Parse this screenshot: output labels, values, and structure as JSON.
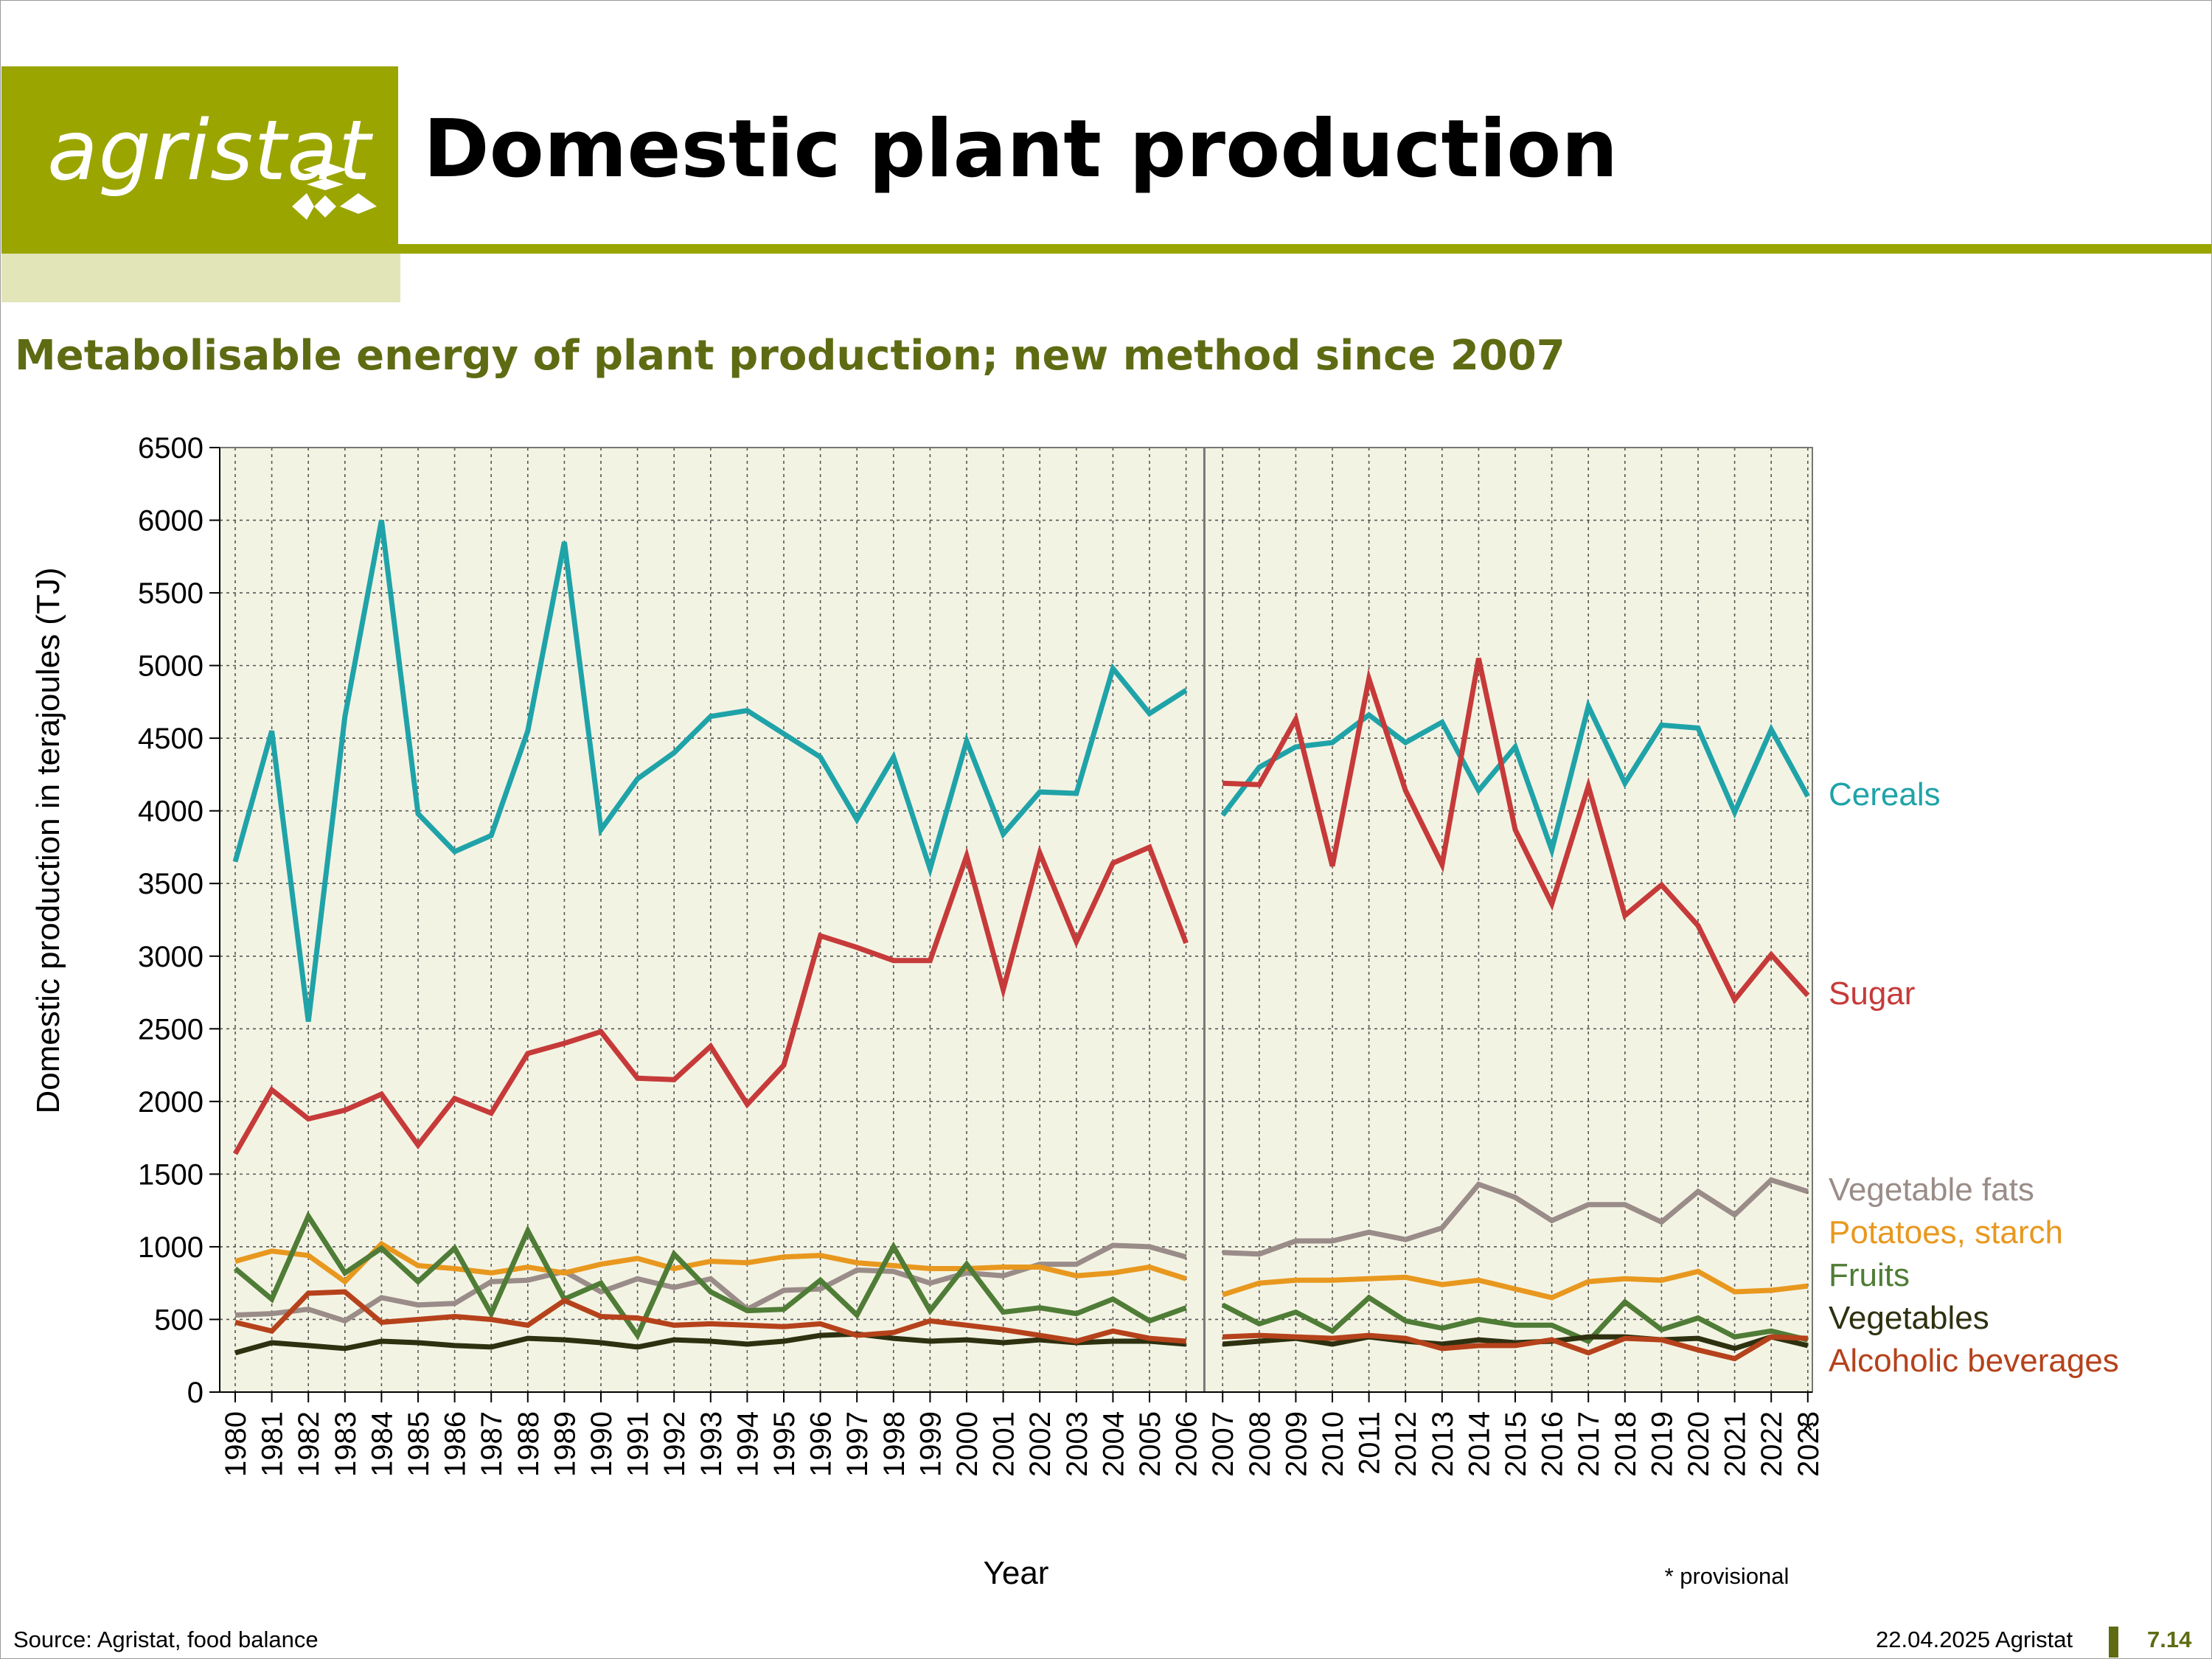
{
  "logo": {
    "text": "agristat"
  },
  "title": "Domestic plant production",
  "subtitle": "Metabolisable energy of plant production; new method since 2007",
  "footer": {
    "source": "Source: Agristat, food balance",
    "date": "22.04.2025 Agristat",
    "page": "7.14"
  },
  "colors": {
    "brand": "#9ba500",
    "brand_dark": "#5f6b13",
    "plot_bg": "#f3f3e3"
  },
  "chart_data": {
    "type": "line",
    "xlabel": "Year",
    "ylabel": "Domestic production in terajoules (TJ)",
    "ylim": [
      0,
      6500
    ],
    "yticks": [
      "0",
      "500",
      "1000",
      "1500",
      "2000",
      "2500",
      "3000",
      "3500",
      "4000",
      "4500",
      "5000",
      "5500",
      "6000",
      "6500"
    ],
    "grid": true,
    "break_note": "new method since 2007",
    "provisional_note": "* provisional",
    "provisional_marker": "*",
    "x": [
      "1980",
      "1981",
      "1982",
      "1983",
      "1984",
      "1985",
      "1986",
      "1987",
      "1988",
      "1989",
      "1990",
      "1991",
      "1992",
      "1993",
      "1994",
      "1995",
      "1996",
      "1997",
      "1998",
      "1999",
      "2000",
      "2001",
      "2002",
      "2003",
      "2004",
      "2005",
      "2006",
      "2007",
      "2008",
      "2009",
      "2010",
      "2011",
      "2012",
      "2013",
      "2014",
      "2015",
      "2016",
      "2017",
      "2018",
      "2019",
      "2020",
      "2021",
      "2022",
      "2023"
    ],
    "series": [
      {
        "name": "Cereals",
        "color": "#1fa3a8",
        "values": [
          3650,
          4550,
          2550,
          4650,
          6000,
          3980,
          3720,
          3830,
          4550,
          5850,
          3870,
          4220,
          4400,
          4650,
          4690,
          4530,
          4370,
          3940,
          4370,
          3600,
          4480,
          3840,
          4130,
          4120,
          4980,
          4670,
          4830,
          3970,
          4300,
          4440,
          4470,
          4660,
          4470,
          4610,
          4140,
          4440,
          3730,
          4720,
          4190,
          4590,
          4570,
          3990,
          4560,
          4100
        ]
      },
      {
        "name": "Sugar",
        "color": "#c63a3a",
        "values": [
          1640,
          2080,
          1880,
          1940,
          2050,
          1700,
          2020,
          1920,
          2330,
          2400,
          2480,
          2160,
          2150,
          2380,
          1980,
          2250,
          3140,
          3060,
          2970,
          2970,
          3690,
          2770,
          3710,
          3100,
          3640,
          3750,
          3090,
          4190,
          4180,
          4630,
          3620,
          4910,
          4140,
          3630,
          5050,
          3870,
          3360,
          4170,
          3280,
          3490,
          3210,
          2700,
          3010,
          2730
        ]
      },
      {
        "name": "Vegetable fats",
        "color": "#9a8c88",
        "values": [
          530,
          540,
          570,
          490,
          650,
          600,
          610,
          760,
          770,
          830,
          690,
          780,
          720,
          780,
          570,
          700,
          710,
          840,
          830,
          750,
          820,
          800,
          880,
          880,
          1010,
          1000,
          930,
          960,
          950,
          1040,
          1040,
          1100,
          1050,
          1130,
          1430,
          1340,
          1180,
          1290,
          1290,
          1170,
          1380,
          1220,
          1460,
          1380
        ]
      },
      {
        "name": "Potatoes, starch",
        "color": "#e8981e",
        "values": [
          900,
          970,
          940,
          760,
          1020,
          870,
          850,
          820,
          860,
          820,
          880,
          920,
          850,
          900,
          890,
          930,
          940,
          890,
          870,
          850,
          850,
          860,
          860,
          800,
          820,
          860,
          780,
          670,
          750,
          770,
          770,
          780,
          790,
          740,
          770,
          710,
          650,
          760,
          780,
          770,
          830,
          690,
          700,
          730
        ]
      },
      {
        "name": "Fruits",
        "color": "#4f7c36",
        "values": [
          850,
          640,
          1210,
          820,
          990,
          760,
          990,
          540,
          1110,
          640,
          750,
          390,
          950,
          690,
          560,
          570,
          770,
          530,
          1000,
          560,
          880,
          550,
          580,
          540,
          640,
          490,
          580,
          600,
          470,
          550,
          420,
          650,
          490,
          440,
          500,
          460,
          460,
          350,
          620,
          430,
          510,
          380,
          420,
          360
        ]
      },
      {
        "name": "Vegetables",
        "color": "#2e3110",
        "values": [
          270,
          340,
          320,
          300,
          350,
          340,
          320,
          310,
          370,
          360,
          340,
          310,
          360,
          350,
          330,
          350,
          390,
          400,
          370,
          350,
          360,
          340,
          360,
          340,
          350,
          350,
          330,
          330,
          350,
          370,
          330,
          380,
          350,
          330,
          360,
          340,
          350,
          380,
          380,
          360,
          370,
          300,
          380,
          320
        ]
      },
      {
        "name": "Alcoholic beverages",
        "color": "#b5421b",
        "values": [
          480,
          420,
          680,
          690,
          480,
          500,
          520,
          500,
          460,
          630,
          520,
          510,
          460,
          470,
          460,
          450,
          470,
          390,
          410,
          490,
          460,
          430,
          390,
          350,
          420,
          370,
          350,
          380,
          390,
          380,
          370,
          390,
          370,
          300,
          320,
          320,
          360,
          270,
          370,
          360,
          290,
          230,
          380,
          370
        ]
      }
    ]
  }
}
